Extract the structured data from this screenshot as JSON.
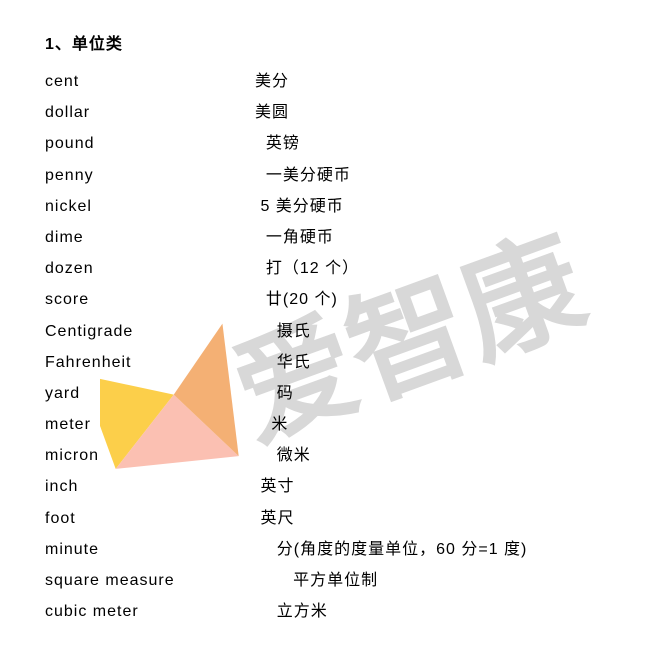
{
  "heading": "1、单位类",
  "rows": [
    {
      "term": "cent",
      "def": "美分"
    },
    {
      "term": "dollar",
      "def": "美圆"
    },
    {
      "term": "pound",
      "def": "  英镑"
    },
    {
      "term": "penny",
      "def": "  一美分硬币"
    },
    {
      "term": "nickel",
      "def": " 5 美分硬币"
    },
    {
      "term": "dime",
      "def": "  一角硬币"
    },
    {
      "term": "dozen",
      "def": "  打（12 个）"
    },
    {
      "term": "score",
      "def": "  廿(20 个)"
    },
    {
      "term": "Centigrade",
      "def": "    摄氏"
    },
    {
      "term": "Fahrenheit",
      "def": "    华氏"
    },
    {
      "term": "yard",
      "def": "    码"
    },
    {
      "term": "meter",
      "def": "   米"
    },
    {
      "term": "micron",
      "def": "    微米"
    },
    {
      "term": "inch",
      "def": " 英寸"
    },
    {
      "term": "foot",
      "def": " 英尺"
    },
    {
      "term": "minute",
      "def": "    分(角度的度量单位，60 分=1 度)"
    },
    {
      "term": "square measure",
      "def": "       平方单位制"
    },
    {
      "term": "cubic meter",
      "def": "    立方米"
    }
  ],
  "watermark": {
    "text_color": "#d8d8d8",
    "triangle_yellow": "#fccf4a",
    "triangle_pink": "#fbc0b2",
    "triangle_orange": "#f4b074",
    "rotation_deg": -20
  }
}
